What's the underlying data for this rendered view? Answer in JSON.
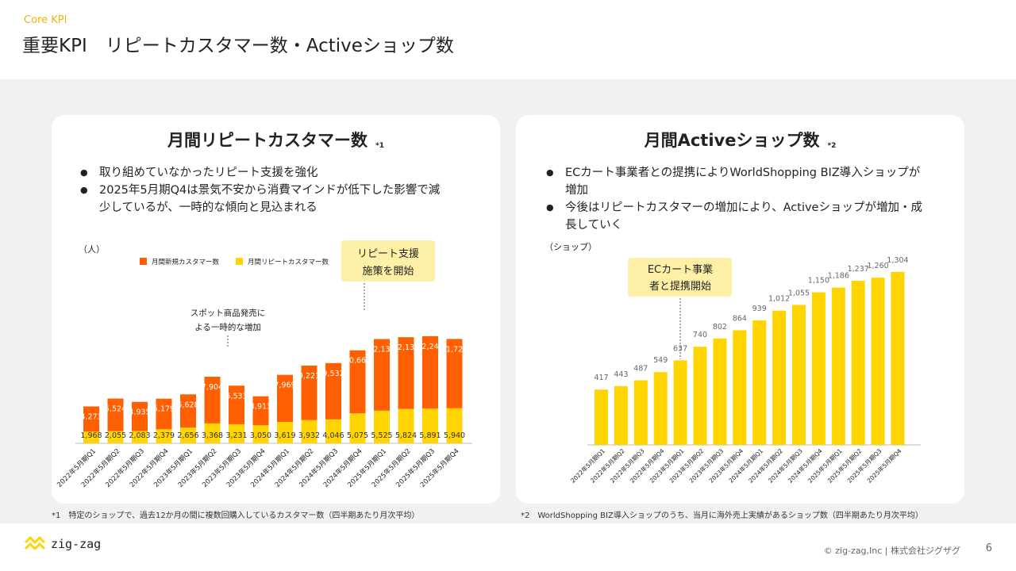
{
  "header": {
    "eyebrow": "Core KPI",
    "title": "重要KPI　リピートカスタマー数・Activeショップ数"
  },
  "left_panel": {
    "title": "月間リピートカスタマー数",
    "note_mark": "*1",
    "bullets": [
      "取り組めていなかったリピート支援を強化",
      "2025年5月期Q4は景気不安から消費マインドが低下した影響で減少しているが、一時的な傾向と見込まれる"
    ],
    "unit": "（人）",
    "callout": "リピート支援施策を開始",
    "annotation": "スポット商品発売による一時的な増加",
    "footnote": "*1　特定のショップで、過去12か月の間に複数回購入しているカスタマー数（四半期あたり月次平均）"
  },
  "right_panel": {
    "title": "月間Activeショップ数",
    "note_mark": "*2",
    "bullets": [
      "ECカート事業者との提携によりWorldShopping BIZ導入ショップが増加",
      "今後はリピートカスタマーの増加により、Activeショップが増加・成長していく"
    ],
    "unit": "（ショップ）",
    "callout": "ECカート事業者と提携開始",
    "footnote": "*2　WorldShopping BIZ導入ショップのうち、当月に海外売上実績があるショップ数（四半期あたり月次平均）"
  },
  "footer": {
    "logo_text": "zig-zag",
    "copyright": "© zig-zag,Inc |  株式会社ジグザグ",
    "page": "6"
  },
  "colors": {
    "orange": "#ff5f00",
    "yellow": "#ffd400",
    "callout_bg": "#fff0a8"
  },
  "chart_data": [
    {
      "type": "bar",
      "stacked": true,
      "categories": [
        "2022年5月期Q1",
        "2022年5月期Q2",
        "2022年5月期Q3",
        "2022年5月期Q4",
        "2023年5月期Q1",
        "2023年5月期Q2",
        "2023年5月期Q3",
        "2023年5月期Q4",
        "2024年5月期Q1",
        "2024年5月期Q2",
        "2024年5月期Q3",
        "2024年5月期Q4",
        "2025年5月期Q1",
        "2025年5月期Q2",
        "2025年5月期Q3",
        "2025年5月期Q4"
      ],
      "series": [
        {
          "name": "月間新規カスタマー数",
          "values": [
            4273,
            5524,
            4935,
            5179,
            5628,
            7904,
            6533,
            4913,
            7969,
            9221,
            9532,
            10667,
            12130,
            12137,
            12240,
            11725
          ]
        },
        {
          "name": "月間リピートカスタマー数",
          "values": [
            1968,
            2055,
            2083,
            2379,
            2656,
            3368,
            3231,
            3050,
            3619,
            3932,
            4046,
            5075,
            5525,
            5824,
            5891,
            5940
          ]
        }
      ],
      "legend_position": "top"
    },
    {
      "type": "bar",
      "categories": [
        "2022年5月期Q1",
        "2022年5月期Q2",
        "2022年5月期Q3",
        "2022年5月期Q4",
        "2023年5月期Q1",
        "2023年5月期Q2",
        "2023年5月期Q3",
        "2023年5月期Q4",
        "2024年5月期Q1",
        "2024年5月期Q2",
        "2024年5月期Q3",
        "2024年5月期Q4",
        "2025年5月期Q1",
        "2025年5月期Q2",
        "2025年5月期Q3",
        "2025年5月期Q4"
      ],
      "values": [
        417,
        443,
        487,
        549,
        637,
        740,
        802,
        864,
        939,
        1012,
        1055,
        1150,
        1186,
        1237,
        1260,
        1304
      ]
    }
  ]
}
